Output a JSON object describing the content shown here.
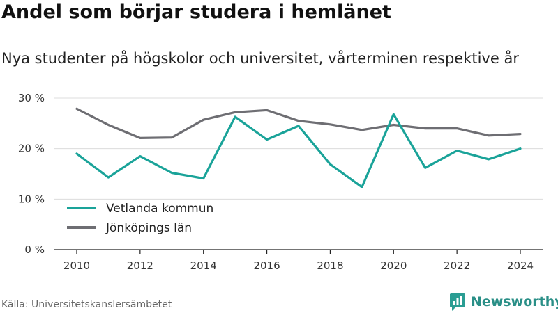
{
  "title": "Andel som börjar studera i hemlänet",
  "subtitle": "Nya studenter på högskolor och universitet, vårterminen respektive år",
  "source": "Källa: Universitetskanslersämbetet",
  "brand": {
    "name": "Newsworthy",
    "icon": "newsworthy-logo-icon",
    "color": "#2a9d93"
  },
  "chart_data": {
    "type": "line",
    "x": [
      2010,
      2011,
      2012,
      2013,
      2014,
      2015,
      2016,
      2017,
      2018,
      2019,
      2020,
      2021,
      2022,
      2023,
      2024
    ],
    "xticks": [
      2010,
      2012,
      2014,
      2016,
      2018,
      2020,
      2022,
      2024
    ],
    "yticks": [
      0,
      10,
      20,
      30
    ],
    "ytick_labels": [
      "0 %",
      "10 %",
      "20 %",
      "30 %"
    ],
    "ylim": [
      0,
      30
    ],
    "grid": true,
    "legend_position": "bottom-left",
    "series": [
      {
        "name": "Vetlanda kommun",
        "color": "#1aa399",
        "values": [
          19.0,
          14.3,
          18.5,
          15.2,
          14.1,
          26.3,
          21.8,
          24.5,
          16.9,
          12.4,
          26.8,
          16.2,
          19.6,
          17.9,
          20.0
        ]
      },
      {
        "name": "Jönköpings län",
        "color": "#6e6e73",
        "values": [
          27.9,
          24.7,
          22.1,
          22.2,
          25.7,
          27.2,
          27.6,
          25.5,
          24.8,
          23.7,
          24.7,
          24.0,
          24.0,
          22.6,
          22.9
        ]
      }
    ]
  }
}
